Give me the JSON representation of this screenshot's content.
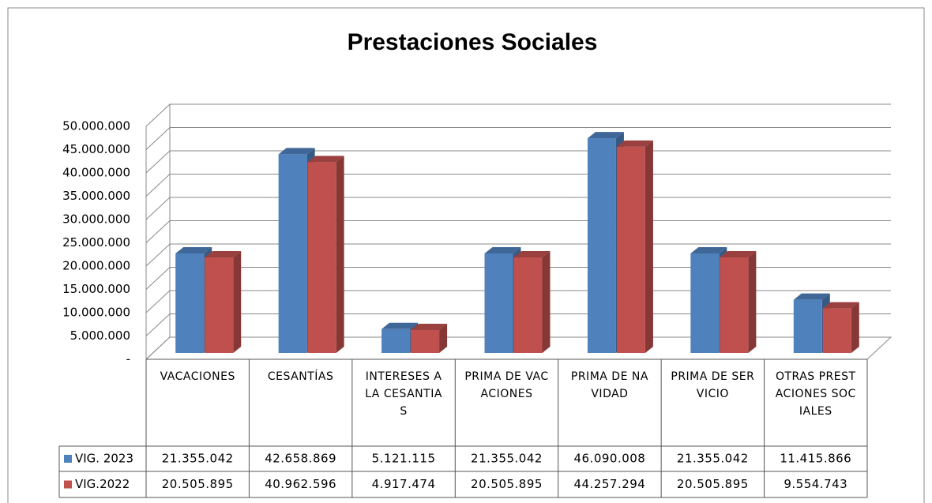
{
  "chart_data": {
    "type": "bar3d",
    "title": "Prestaciones Sociales",
    "categories": [
      "VACACIONES",
      "CESANTÍAS",
      "INTERESES A LA CESANTIAS",
      "PRIMA DE VACACIONES",
      "PRIMA DE NAVIDAD",
      "PRIMA DE SERVICIO",
      "OTRAS PRESTACIONES SOCIALES"
    ],
    "series": [
      {
        "name": "VIG. 2023",
        "color": "#4f81bd",
        "values": [
          21355042,
          42658869,
          5121115,
          21355042,
          46090008,
          21355042,
          11415866
        ],
        "value_labels": [
          "21.355.042",
          "42.658.869",
          "5.121.115",
          "21.355.042",
          "46.090.008",
          "21.355.042",
          "11.415.866"
        ]
      },
      {
        "name": "VIG.2022",
        "color": "#c0504d",
        "values": [
          20505895,
          40962596,
          4917474,
          20505895,
          44257294,
          20505895,
          9554743
        ],
        "value_labels": [
          "20.505.895",
          "40.962.596",
          "4.917.474",
          "20.505.895",
          "44.257.294",
          "20.505.895",
          "9.554.743"
        ]
      }
    ],
    "ylim": [
      0,
      50000000
    ],
    "yticks": [
      {
        "value": 0,
        "label": "-"
      },
      {
        "value": 5000000,
        "label": "5.000.000"
      },
      {
        "value": 10000000,
        "label": "10.000.000"
      },
      {
        "value": 15000000,
        "label": "15.000.000"
      },
      {
        "value": 20000000,
        "label": "20.000.000"
      },
      {
        "value": 25000000,
        "label": "25.000.000"
      },
      {
        "value": 30000000,
        "label": "30.000.000"
      },
      {
        "value": 35000000,
        "label": "35.000.000"
      },
      {
        "value": 40000000,
        "label": "40.000.000"
      },
      {
        "value": 45000000,
        "label": "45.000.000"
      },
      {
        "value": 50000000,
        "label": "50.000.000"
      }
    ],
    "grid": true,
    "legend": "table"
  }
}
